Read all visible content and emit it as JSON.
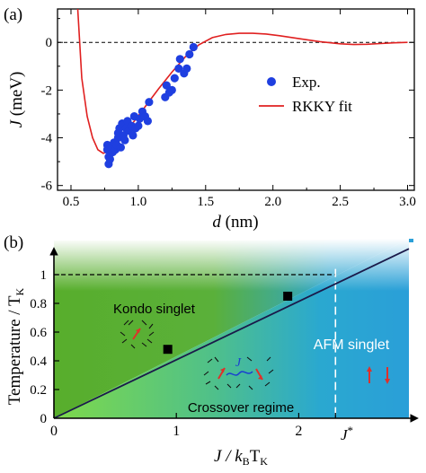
{
  "panel_a": {
    "label": "(a)",
    "ylabel_main": "J",
    "ylabel_unit": " (meV)",
    "xlabel_main": "d",
    "xlabel_unit": " (nm)",
    "legend": {
      "exp": "Exp.",
      "fit": "RKKY fit"
    },
    "x_ticks": [
      "0.5",
      "1.0",
      "1.5",
      "2.0",
      "2.5",
      "3.0"
    ],
    "y_ticks": [
      "0",
      "-2",
      "-4",
      "-6"
    ]
  },
  "panel_b": {
    "label": "(b)",
    "ylabel": "Temperature / T",
    "ylabel_sub": "K",
    "xlabel": "J / k",
    "xlabel_sub1": "B",
    "xlabel_mid": "T",
    "xlabel_sub2": "K",
    "x_ticks": [
      "0",
      "1",
      "2"
    ],
    "jstar_main": "J",
    "jstar_sup": "*",
    "y_ticks": [
      "1",
      "0.8",
      "0.6",
      "0.4",
      "0.2",
      "0"
    ],
    "region_kondo": "Kondo singlet",
    "region_afm": "AFM singlet",
    "region_crossover": "Crossover regime",
    "coupling_label": "J",
    "colors": {
      "kondo_green": "#5fb83a",
      "afm_blue": "#2aa0d8",
      "spin_red": "#e0302a"
    }
  },
  "chart_data": [
    {
      "type": "scatter",
      "panel": "a",
      "xlabel": "d (nm)",
      "ylabel": "J (meV)",
      "xlim": [
        0.4,
        3.05
      ],
      "ylim": [
        -6.2,
        1.4
      ],
      "grid": false,
      "legend_position": "right",
      "reference_line_y": 0,
      "series": [
        {
          "name": "Exp.",
          "kind": "scatter",
          "color": "#1f3fe0",
          "points": [
            [
              0.77,
              -4.3
            ],
            [
              0.77,
              -4.5
            ],
            [
              0.78,
              -4.8
            ],
            [
              0.78,
              -5.1
            ],
            [
              0.79,
              -4.9
            ],
            [
              0.8,
              -4.4
            ],
            [
              0.81,
              -4.6
            ],
            [
              0.82,
              -4.2
            ],
            [
              0.83,
              -4.5
            ],
            [
              0.84,
              -4.3
            ],
            [
              0.85,
              -4.0
            ],
            [
              0.85,
              -3.8
            ],
            [
              0.86,
              -3.6
            ],
            [
              0.87,
              -4.4
            ],
            [
              0.88,
              -3.4
            ],
            [
              0.89,
              -3.9
            ],
            [
              0.9,
              -4.1
            ],
            [
              0.91,
              -3.6
            ],
            [
              0.92,
              -3.3
            ],
            [
              0.93,
              -3.7
            ],
            [
              0.95,
              -3.5
            ],
            [
              0.96,
              -3.9
            ],
            [
              0.97,
              -3.1
            ],
            [
              0.98,
              -3.6
            ],
            [
              1.0,
              -3.5
            ],
            [
              1.01,
              -3.2
            ],
            [
              1.03,
              -2.9
            ],
            [
              1.05,
              -3.1
            ],
            [
              1.07,
              -3.3
            ],
            [
              1.08,
              -2.5
            ],
            [
              1.2,
              -2.3
            ],
            [
              1.21,
              -1.8
            ],
            [
              1.23,
              -2.1
            ],
            [
              1.25,
              -2.0
            ],
            [
              1.27,
              -1.5
            ],
            [
              1.3,
              -1.1
            ],
            [
              1.31,
              -0.7
            ],
            [
              1.34,
              -1.3
            ],
            [
              1.36,
              -1.1
            ],
            [
              1.38,
              -0.5
            ],
            [
              1.41,
              -0.2
            ]
          ]
        },
        {
          "name": "RKKY fit",
          "kind": "line",
          "color": "#e02020",
          "points": [
            [
              0.55,
              1.4
            ],
            [
              0.58,
              -1.5
            ],
            [
              0.62,
              -3.1
            ],
            [
              0.66,
              -4.0
            ],
            [
              0.7,
              -4.5
            ],
            [
              0.74,
              -4.65
            ],
            [
              0.78,
              -4.55
            ],
            [
              0.85,
              -4.15
            ],
            [
              0.95,
              -3.45
            ],
            [
              1.05,
              -2.7
            ],
            [
              1.15,
              -1.95
            ],
            [
              1.25,
              -1.25
            ],
            [
              1.35,
              -0.6
            ],
            [
              1.45,
              -0.1
            ],
            [
              1.55,
              0.2
            ],
            [
              1.65,
              0.33
            ],
            [
              1.75,
              0.38
            ],
            [
              1.85,
              0.38
            ],
            [
              1.95,
              0.35
            ],
            [
              2.05,
              0.28
            ],
            [
              2.2,
              0.15
            ],
            [
              2.35,
              0.03
            ],
            [
              2.5,
              -0.06
            ],
            [
              2.6,
              -0.09
            ],
            [
              2.7,
              -0.08
            ],
            [
              2.8,
              -0.05
            ],
            [
              2.9,
              -0.02
            ],
            [
              3.0,
              0.0
            ]
          ]
        }
      ]
    },
    {
      "type": "area",
      "panel": "b",
      "xlabel": "J/kBTK",
      "ylabel": "Temperature / TK",
      "xlim": [
        0,
        2.9
      ],
      "ylim": [
        0,
        1.25
      ],
      "grid": false,
      "series": [
        {
          "name": "",
          "kind": "line",
          "color": "#1a1a4a",
          "points": [
            [
              0,
              0
            ],
            [
              2.9,
              1.18
            ]
          ]
        },
        {
          "name": "",
          "kind": "scatter",
          "marker": "square",
          "color": "#000000",
          "points": [
            [
              0.93,
              0.48
            ],
            [
              1.91,
              0.85
            ]
          ]
        }
      ],
      "reference_lines": [
        {
          "orientation": "horizontal",
          "y": 1.0,
          "x_range": [
            0,
            2.3
          ],
          "style": "dashed",
          "color": "#000000"
        },
        {
          "orientation": "vertical",
          "x": 2.3,
          "style": "dashed",
          "color": "#ffffff"
        }
      ]
    }
  ]
}
